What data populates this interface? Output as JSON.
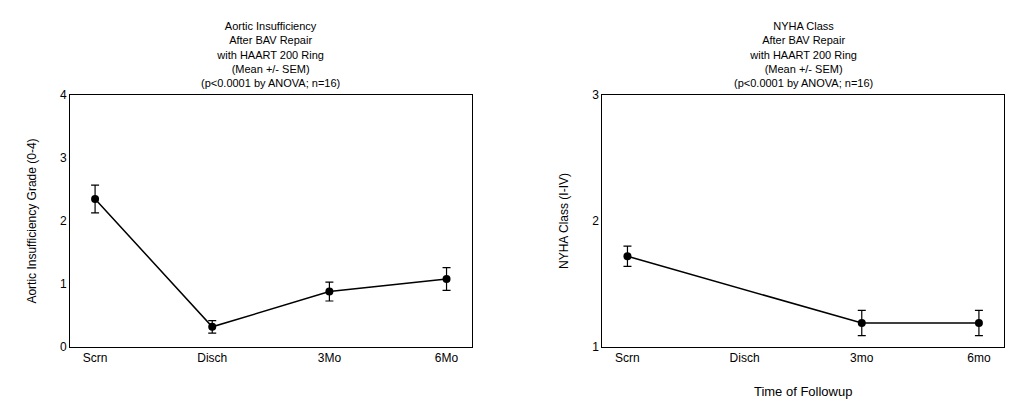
{
  "chart_data": [
    {
      "type": "line",
      "title": "Aortic Insufficiency\nAfter BAV Repair\nwith HAART 200 Ring\n(Mean +/- SEM)\n(p<0.0001 by ANOVA; n=16)",
      "categories": [
        "Scrn",
        "Disch",
        "3Mo",
        "6Mo"
      ],
      "values": [
        2.35,
        0.32,
        0.88,
        1.08
      ],
      "errors": [
        0.22,
        0.1,
        0.15,
        0.18
      ],
      "ylabel": "Aortic Insufficiency Grade (0-4)",
      "ylim": [
        0,
        4
      ],
      "yticks": [
        0,
        1,
        2,
        3,
        4
      ],
      "color": "#000000",
      "marker": "circle",
      "grid": false
    },
    {
      "type": "line",
      "title": "NYHA Class\nAfter BAV Repair\nwith HAART 200 Ring\n(Mean +/- SEM)\n(p<0.0001 by ANOVA; n=16)",
      "categories": [
        "Scrn",
        "Disch",
        "3mo",
        "6mo"
      ],
      "values": [
        1.72,
        null,
        1.19,
        1.19
      ],
      "errors": [
        0.08,
        null,
        0.1,
        0.1
      ],
      "ylabel": "NYHA Class (I-IV)",
      "xlabel": "Time of Followup",
      "ylim": [
        1,
        3
      ],
      "yticks": [
        1,
        2,
        3
      ],
      "color": "#000000",
      "marker": "circle",
      "grid": false
    }
  ]
}
